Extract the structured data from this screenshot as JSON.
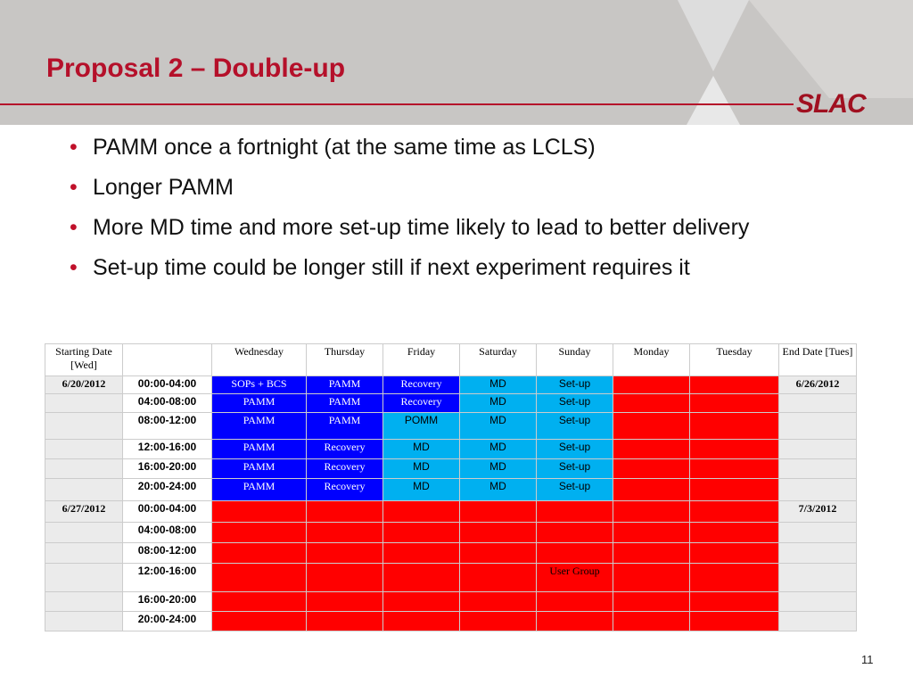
{
  "header": {
    "title": "Proposal 2 – Double-up",
    "logo": "SLAC"
  },
  "bullets": [
    "PAMM once a fortnight (at the same time as LCLS)",
    "Longer PAMM",
    "More MD time and more set-up time likely to lead to better delivery",
    "Set-up time could be longer still if next experiment requires it"
  ],
  "table": {
    "columns": [
      "Starting Date [Wed]",
      null,
      "Wednesday",
      "Thursday",
      "Friday",
      "Saturday",
      "Sunday",
      "Monday",
      "Tuesday",
      "End Date [Tues]"
    ],
    "rows": [
      [
        "6/20/2012",
        "00:00-04:00",
        "SOPs + BCS",
        "PAMM",
        "Recovery",
        "MD",
        "Set-up",
        null,
        null,
        "6/26/2012"
      ],
      [
        null,
        "04:00-08:00",
        "PAMM",
        "PAMM",
        "Recovery",
        "MD",
        "Set-up",
        null,
        null,
        null
      ],
      [
        null,
        "08:00-12:00",
        "PAMM",
        "PAMM",
        "POMM",
        "MD",
        "Set-up",
        null,
        null,
        null
      ],
      [
        null,
        "12:00-16:00",
        "PAMM",
        "Recovery",
        "MD",
        "MD",
        "Set-up",
        null,
        null,
        null
      ],
      [
        null,
        "16:00-20:00",
        "PAMM",
        "Recovery",
        "MD",
        "MD",
        "Set-up",
        null,
        null,
        null
      ],
      [
        null,
        "20:00-24:00",
        "PAMM",
        "Recovery",
        "MD",
        "MD",
        "Set-up",
        null,
        null,
        null
      ],
      [
        "6/27/2012",
        "00:00-04:00",
        null,
        null,
        null,
        null,
        null,
        null,
        null,
        "7/3/2012"
      ],
      [
        null,
        "04:00-08:00",
        null,
        null,
        null,
        null,
        null,
        null,
        null,
        null
      ],
      [
        null,
        "08:00-12:00",
        null,
        null,
        null,
        null,
        null,
        null,
        null,
        null
      ],
      [
        null,
        "12:00-16:00",
        null,
        null,
        null,
        null,
        "User Group",
        null,
        null,
        null
      ],
      [
        null,
        "16:00-20:00",
        null,
        null,
        null,
        null,
        null,
        null,
        null,
        null
      ],
      [
        null,
        "20:00-24:00",
        null,
        null,
        null,
        null,
        null,
        null,
        null,
        null
      ]
    ],
    "fills": [
      [
        null,
        null,
        "#0000ff",
        "#0000ff",
        "#0000ff",
        "#00b0f0",
        "#00b0f0",
        "#ff0000",
        "#ff0000",
        null
      ],
      [
        null,
        null,
        "#0000ff",
        "#0000ff",
        "#0000ff",
        "#00b0f0",
        "#00b0f0",
        "#ff0000",
        "#ff0000",
        null
      ],
      [
        null,
        null,
        "#0000ff",
        "#0000ff",
        "#00b0f0",
        "#00b0f0",
        "#00b0f0",
        "#ff0000",
        "#ff0000",
        null
      ],
      [
        null,
        null,
        "#0000ff",
        "#0000ff",
        "#00b0f0",
        "#00b0f0",
        "#00b0f0",
        "#ff0000",
        "#ff0000",
        null
      ],
      [
        null,
        null,
        "#0000ff",
        "#0000ff",
        "#00b0f0",
        "#00b0f0",
        "#00b0f0",
        "#ff0000",
        "#ff0000",
        null
      ],
      [
        null,
        null,
        "#0000ff",
        "#0000ff",
        "#00b0f0",
        "#00b0f0",
        "#00b0f0",
        "#ff0000",
        "#ff0000",
        null
      ],
      [
        null,
        null,
        "#ff0000",
        "#ff0000",
        "#ff0000",
        "#ff0000",
        "#ff0000",
        "#ff0000",
        "#ff0000",
        null
      ],
      [
        null,
        null,
        "#ff0000",
        "#ff0000",
        "#ff0000",
        "#ff0000",
        "#ff0000",
        "#ff0000",
        "#ff0000",
        null
      ],
      [
        null,
        null,
        "#ff0000",
        "#ff0000",
        "#ff0000",
        "#ff0000",
        "#ff0000",
        "#ff0000",
        "#ff0000",
        null
      ],
      [
        null,
        null,
        "#ff0000",
        "#ff0000",
        "#ff0000",
        "#ff0000",
        "#ff0000",
        "#ff0000",
        "#ff0000",
        null
      ],
      [
        null,
        null,
        "#ff0000",
        "#ff0000",
        "#ff0000",
        "#ff0000",
        "#ff0000",
        "#ff0000",
        "#ff0000",
        null
      ],
      [
        null,
        null,
        "#ff0000",
        "#ff0000",
        "#ff0000",
        "#ff0000",
        "#ff0000",
        "#ff0000",
        "#ff0000",
        null
      ]
    ]
  },
  "page_number": "11"
}
